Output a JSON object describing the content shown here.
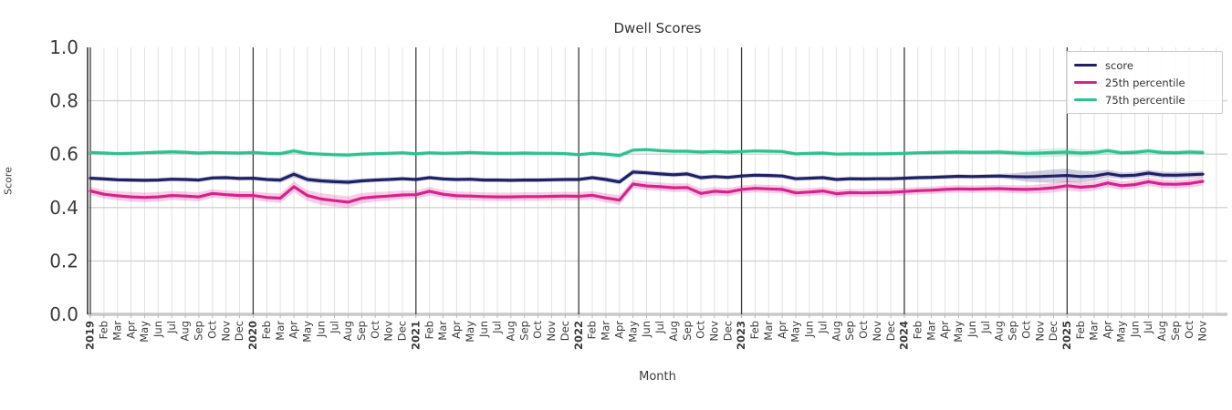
{
  "chart_data": {
    "type": "line",
    "title": "Dwell Scores",
    "xlabel": "Month",
    "ylabel": "Score",
    "ylim": [
      0.0,
      1.0
    ],
    "ytick_labels": [
      "0.0",
      "0.2",
      "0.4",
      "0.6",
      "0.8",
      "1.0"
    ],
    "grid": true,
    "legend_position": "upper right",
    "x_labels": [
      "2019",
      "Feb",
      "Mar",
      "Apr",
      "May",
      "Jun",
      "Jul",
      "Aug",
      "Sep",
      "Oct",
      "Nov",
      "Dec",
      "2020",
      "Feb",
      "Mar",
      "Apr",
      "May",
      "Jun",
      "Jul",
      "Aug",
      "Sep",
      "Oct",
      "Nov",
      "Dec",
      "2021",
      "Feb",
      "Mar",
      "Apr",
      "May",
      "Jun",
      "Jul",
      "Aug",
      "Sep",
      "Oct",
      "Nov",
      "Dec",
      "2022",
      "Feb",
      "Mar",
      "Apr",
      "May",
      "Jun",
      "Jul",
      "Aug",
      "Sep",
      "Oct",
      "Nov",
      "Dec",
      "2023",
      "Feb",
      "Mar",
      "Apr",
      "May",
      "Jun",
      "Jul",
      "Aug",
      "Sep",
      "Oct",
      "Nov",
      "Dec",
      "2024",
      "Feb",
      "Mar",
      "Apr",
      "May",
      "Jun",
      "Jul",
      "Aug",
      "Sep",
      "Oct",
      "Nov",
      "Dec",
      "2025",
      "Feb",
      "Mar",
      "Apr",
      "May",
      "Jun",
      "Jul",
      "Aug",
      "Sep",
      "Oct",
      "Nov"
    ],
    "series": [
      {
        "name": "score",
        "color": "#1e2167",
        "values": [
          0.51,
          0.507,
          0.504,
          0.503,
          0.502,
          0.503,
          0.506,
          0.505,
          0.503,
          0.511,
          0.512,
          0.509,
          0.51,
          0.505,
          0.503,
          0.525,
          0.505,
          0.5,
          0.497,
          0.495,
          0.5,
          0.503,
          0.505,
          0.508,
          0.505,
          0.512,
          0.507,
          0.505,
          0.506,
          0.503,
          0.503,
          0.502,
          0.503,
          0.503,
          0.504,
          0.505,
          0.505,
          0.512,
          0.505,
          0.496,
          0.533,
          0.53,
          0.526,
          0.523,
          0.526,
          0.512,
          0.516,
          0.513,
          0.518,
          0.521,
          0.52,
          0.518,
          0.508,
          0.51,
          0.512,
          0.505,
          0.508,
          0.507,
          0.508,
          0.508,
          0.51,
          0.512,
          0.513,
          0.515,
          0.517,
          0.516,
          0.517,
          0.518,
          0.516,
          0.515,
          0.516,
          0.518,
          0.52,
          0.516,
          0.518,
          0.527,
          0.519,
          0.521,
          0.529,
          0.522,
          0.521,
          0.523,
          0.525
        ],
        "ci": [
          0.008,
          0.008,
          0.008,
          0.008,
          0.008,
          0.008,
          0.008,
          0.008,
          0.008,
          0.008,
          0.008,
          0.008,
          0.008,
          0.008,
          0.01,
          0.012,
          0.01,
          0.01,
          0.01,
          0.01,
          0.009,
          0.008,
          0.008,
          0.008,
          0.008,
          0.008,
          0.008,
          0.008,
          0.008,
          0.008,
          0.008,
          0.008,
          0.008,
          0.008,
          0.008,
          0.008,
          0.008,
          0.008,
          0.009,
          0.01,
          0.01,
          0.009,
          0.009,
          0.009,
          0.009,
          0.009,
          0.008,
          0.008,
          0.008,
          0.008,
          0.008,
          0.008,
          0.008,
          0.008,
          0.008,
          0.008,
          0.008,
          0.008,
          0.008,
          0.008,
          0.008,
          0.008,
          0.008,
          0.008,
          0.008,
          0.008,
          0.008,
          0.009,
          0.012,
          0.018,
          0.022,
          0.025,
          0.025,
          0.022,
          0.018,
          0.014,
          0.012,
          0.012,
          0.012,
          0.012,
          0.012,
          0.012,
          0.012
        ]
      },
      {
        "name": "25th percentile",
        "color": "#d9218e",
        "values": [
          0.462,
          0.45,
          0.444,
          0.44,
          0.438,
          0.44,
          0.445,
          0.443,
          0.44,
          0.453,
          0.448,
          0.445,
          0.445,
          0.438,
          0.435,
          0.478,
          0.445,
          0.432,
          0.426,
          0.42,
          0.435,
          0.44,
          0.443,
          0.447,
          0.448,
          0.461,
          0.45,
          0.444,
          0.443,
          0.441,
          0.44,
          0.44,
          0.441,
          0.441,
          0.442,
          0.443,
          0.442,
          0.446,
          0.436,
          0.428,
          0.488,
          0.481,
          0.478,
          0.474,
          0.475,
          0.453,
          0.461,
          0.458,
          0.468,
          0.472,
          0.47,
          0.468,
          0.455,
          0.458,
          0.462,
          0.452,
          0.456,
          0.455,
          0.456,
          0.457,
          0.46,
          0.463,
          0.465,
          0.468,
          0.47,
          0.469,
          0.47,
          0.471,
          0.469,
          0.468,
          0.47,
          0.474,
          0.482,
          0.476,
          0.48,
          0.492,
          0.482,
          0.486,
          0.497,
          0.488,
          0.487,
          0.49,
          0.498
        ],
        "ci": [
          0.016,
          0.016,
          0.017,
          0.018,
          0.018,
          0.018,
          0.017,
          0.017,
          0.017,
          0.016,
          0.016,
          0.016,
          0.016,
          0.017,
          0.018,
          0.02,
          0.02,
          0.022,
          0.022,
          0.022,
          0.02,
          0.018,
          0.017,
          0.016,
          0.016,
          0.016,
          0.016,
          0.016,
          0.016,
          0.016,
          0.016,
          0.016,
          0.016,
          0.016,
          0.016,
          0.016,
          0.016,
          0.016,
          0.017,
          0.018,
          0.016,
          0.016,
          0.016,
          0.016,
          0.016,
          0.018,
          0.016,
          0.016,
          0.015,
          0.015,
          0.015,
          0.015,
          0.015,
          0.015,
          0.015,
          0.015,
          0.015,
          0.015,
          0.015,
          0.015,
          0.014,
          0.014,
          0.014,
          0.014,
          0.014,
          0.014,
          0.014,
          0.014,
          0.015,
          0.016,
          0.017,
          0.018,
          0.018,
          0.018,
          0.017,
          0.017,
          0.016,
          0.016,
          0.016,
          0.016,
          0.016,
          0.016,
          0.016
        ]
      },
      {
        "name": "75th percentile",
        "color": "#2cc290",
        "values": [
          0.606,
          0.604,
          0.602,
          0.603,
          0.605,
          0.607,
          0.609,
          0.607,
          0.604,
          0.606,
          0.605,
          0.604,
          0.606,
          0.603,
          0.602,
          0.612,
          0.603,
          0.6,
          0.598,
          0.597,
          0.6,
          0.602,
          0.603,
          0.605,
          0.601,
          0.605,
          0.603,
          0.604,
          0.606,
          0.604,
          0.603,
          0.603,
          0.604,
          0.603,
          0.603,
          0.602,
          0.598,
          0.603,
          0.6,
          0.595,
          0.615,
          0.617,
          0.613,
          0.611,
          0.611,
          0.608,
          0.61,
          0.608,
          0.61,
          0.612,
          0.611,
          0.61,
          0.601,
          0.603,
          0.604,
          0.6,
          0.601,
          0.601,
          0.601,
          0.602,
          0.603,
          0.605,
          0.606,
          0.607,
          0.608,
          0.607,
          0.607,
          0.608,
          0.605,
          0.603,
          0.604,
          0.606,
          0.608,
          0.604,
          0.606,
          0.613,
          0.605,
          0.607,
          0.612,
          0.606,
          0.605,
          0.608,
          0.606
        ],
        "ci": [
          0.007,
          0.007,
          0.007,
          0.007,
          0.007,
          0.007,
          0.007,
          0.007,
          0.007,
          0.007,
          0.007,
          0.007,
          0.007,
          0.007,
          0.008,
          0.009,
          0.008,
          0.008,
          0.008,
          0.008,
          0.008,
          0.007,
          0.007,
          0.007,
          0.007,
          0.007,
          0.007,
          0.007,
          0.007,
          0.007,
          0.007,
          0.007,
          0.007,
          0.007,
          0.007,
          0.007,
          0.007,
          0.007,
          0.008,
          0.009,
          0.008,
          0.007,
          0.007,
          0.007,
          0.007,
          0.007,
          0.007,
          0.007,
          0.007,
          0.007,
          0.007,
          0.007,
          0.007,
          0.007,
          0.007,
          0.007,
          0.007,
          0.007,
          0.007,
          0.007,
          0.007,
          0.007,
          0.007,
          0.007,
          0.007,
          0.007,
          0.007,
          0.008,
          0.01,
          0.013,
          0.015,
          0.016,
          0.016,
          0.014,
          0.012,
          0.01,
          0.009,
          0.009,
          0.009,
          0.009,
          0.009,
          0.009,
          0.009
        ]
      }
    ],
    "colors": {
      "grid_minor": "#e2e2e2",
      "grid_major": "#d2d2d2",
      "baseline": "#c9c9c9",
      "year_line": "#3a3a3a",
      "spine": "#262626",
      "tick_text": "#3b3b3b"
    }
  }
}
